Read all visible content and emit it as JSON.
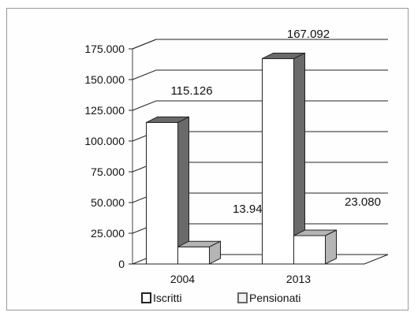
{
  "chart_data": {
    "type": "bar",
    "categories": [
      "2004",
      "2013"
    ],
    "series": [
      {
        "name": "Iscritti",
        "values": [
          115126,
          167092
        ],
        "labels": [
          "115.126",
          "167.092"
        ],
        "color": "#ffffff"
      },
      {
        "name": "Pensionati",
        "values": [
          13949,
          23080
        ],
        "labels": [
          "13.949",
          "23.080"
        ],
        "color": "#ffffff"
      }
    ],
    "yticks": [
      "0",
      "25.000",
      "50.000",
      "75.000",
      "100.000",
      "125.000",
      "150.000",
      "175.000"
    ],
    "ylim": [
      0,
      175000
    ],
    "grid": true,
    "legend_position": "bottom",
    "side_colors": {
      "Iscritti": "#6a6a6a",
      "Pensionati": "#b5b5b5"
    }
  }
}
